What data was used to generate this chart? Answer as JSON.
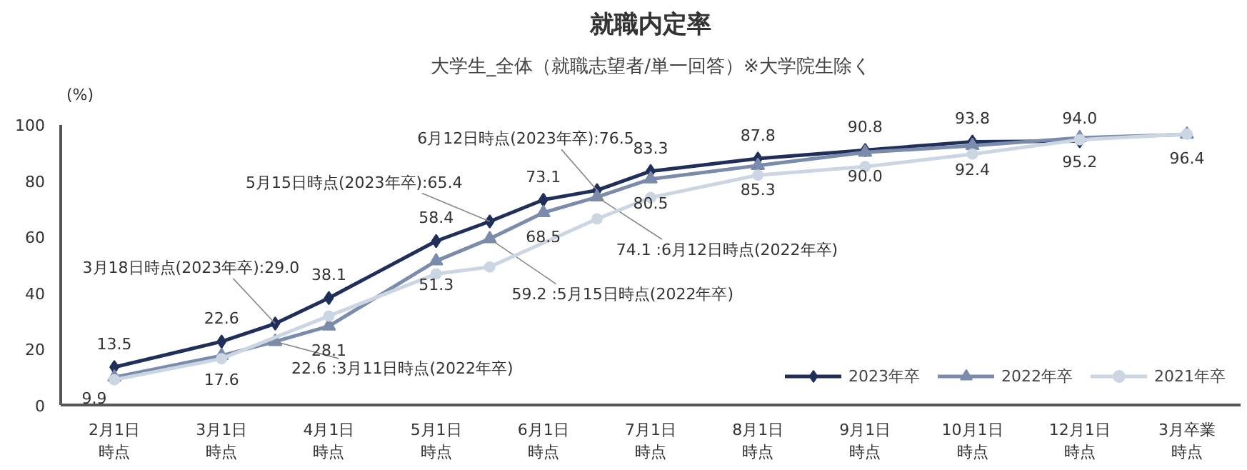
{
  "chart_data": {
    "type": "line",
    "title": "就職内定率",
    "subtitle": "大学生_全体（就職志望者/単一回答）※大学院生除く",
    "ylabel": "(%)",
    "categories": [
      "2月1日時点",
      null,
      "3月1日時点",
      null,
      "4月1日時点",
      null,
      "5月1日時点",
      null,
      "6月1日時点",
      null,
      "7月1日時点",
      null,
      "8月1日時点",
      null,
      "9月1日時点",
      null,
      "10月1日時点",
      null,
      "12月1日時点",
      null,
      "3月卒業時点"
    ],
    "ylim": [
      0,
      100
    ],
    "yticks": [
      0,
      20,
      40,
      60,
      80,
      100
    ],
    "grid": false,
    "legend": "bottom right",
    "line_style": "solid",
    "series": [
      {
        "name": "2023年卒",
        "color": "#1f2f5a",
        "marker": "diamond",
        "values": [
          13.5,
          null,
          22.6,
          29.0,
          38.1,
          null,
          58.4,
          65.4,
          73.1,
          76.5,
          83.3,
          null,
          87.8,
          null,
          90.8,
          null,
          93.8,
          null,
          94.0,
          null,
          null
        ],
        "value_labels": [
          "13.5",
          null,
          "22.6",
          "3月18日時点(2023年卒):29.0",
          "38.1",
          null,
          "58.4",
          "5月15日時点(2023年卒):65.4",
          "73.1",
          "6月12日時点(2023年卒):76.5",
          "83.3",
          null,
          "87.8",
          null,
          "90.8",
          null,
          "93.8",
          null,
          "94.0",
          null,
          null
        ]
      },
      {
        "name": "2022年卒",
        "color": "#7b8bab",
        "marker": "triangle",
        "values": [
          9.9,
          null,
          17.6,
          22.6,
          28.1,
          null,
          51.3,
          59.2,
          68.5,
          74.1,
          80.5,
          null,
          85.3,
          null,
          90.0,
          null,
          92.4,
          null,
          95.2,
          null,
          96.4
        ],
        "value_labels": [
          "9.9",
          null,
          "17.6",
          "22.6 :3月11日時点(2022年卒)",
          "28.1",
          null,
          "51.3",
          "59.2 :5月15日時点(2022年卒)",
          "68.5",
          "74.1 :6月12日時点(2022年卒)",
          "80.5",
          null,
          "85.3",
          null,
          "90.0",
          null,
          "92.4",
          null,
          "95.2",
          null,
          "96.4"
        ]
      },
      {
        "name": "2021年卒",
        "color": "#ccd6e3",
        "marker": "circle",
        "values": [
          9.0,
          null,
          16.5,
          null,
          31.7,
          null,
          46.7,
          49.2,
          null,
          66.3,
          73.9,
          null,
          81.9,
          null,
          84.9,
          null,
          89.4,
          null,
          94.5,
          null,
          96.5
        ]
      }
    ]
  }
}
